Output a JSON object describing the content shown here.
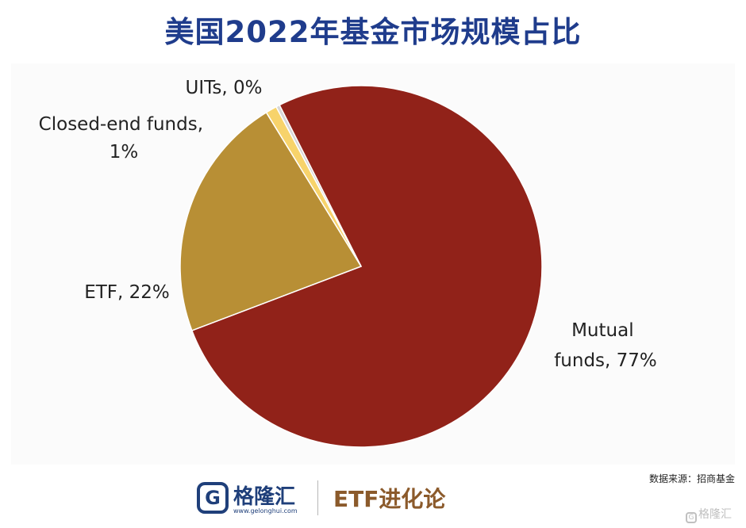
{
  "title": "美国2022年基金市场规模占比",
  "source": "数据来源：招商基金",
  "footer": {
    "logo_mark": "G",
    "brand_name": "格隆汇",
    "brand_url": "www.gelonghui.com",
    "column_name": "ETF进化论"
  },
  "watermark": {
    "icon": "gelonghui-logo-icon",
    "text": "格隆汇"
  },
  "chart_data": {
    "type": "pie",
    "start_angle_deg": -28,
    "direction": "clockwise",
    "slices": [
      {
        "name": "Mutual funds",
        "value": 77,
        "color": "#912219",
        "label_lines": [
          "Mutual",
          "funds, 77%"
        ]
      },
      {
        "name": "ETF",
        "value": 22,
        "color": "#b88f35",
        "label_lines": [
          "ETF, 22%"
        ]
      },
      {
        "name": "Closed-end funds",
        "value": 1,
        "color": "#f7d36b",
        "label_lines": [
          "Closed-end funds,",
          "1%"
        ]
      },
      {
        "name": "UITs",
        "value": 0,
        "color": "#d7d7d7",
        "label_lines": [
          "UITs, 0%"
        ]
      }
    ]
  }
}
